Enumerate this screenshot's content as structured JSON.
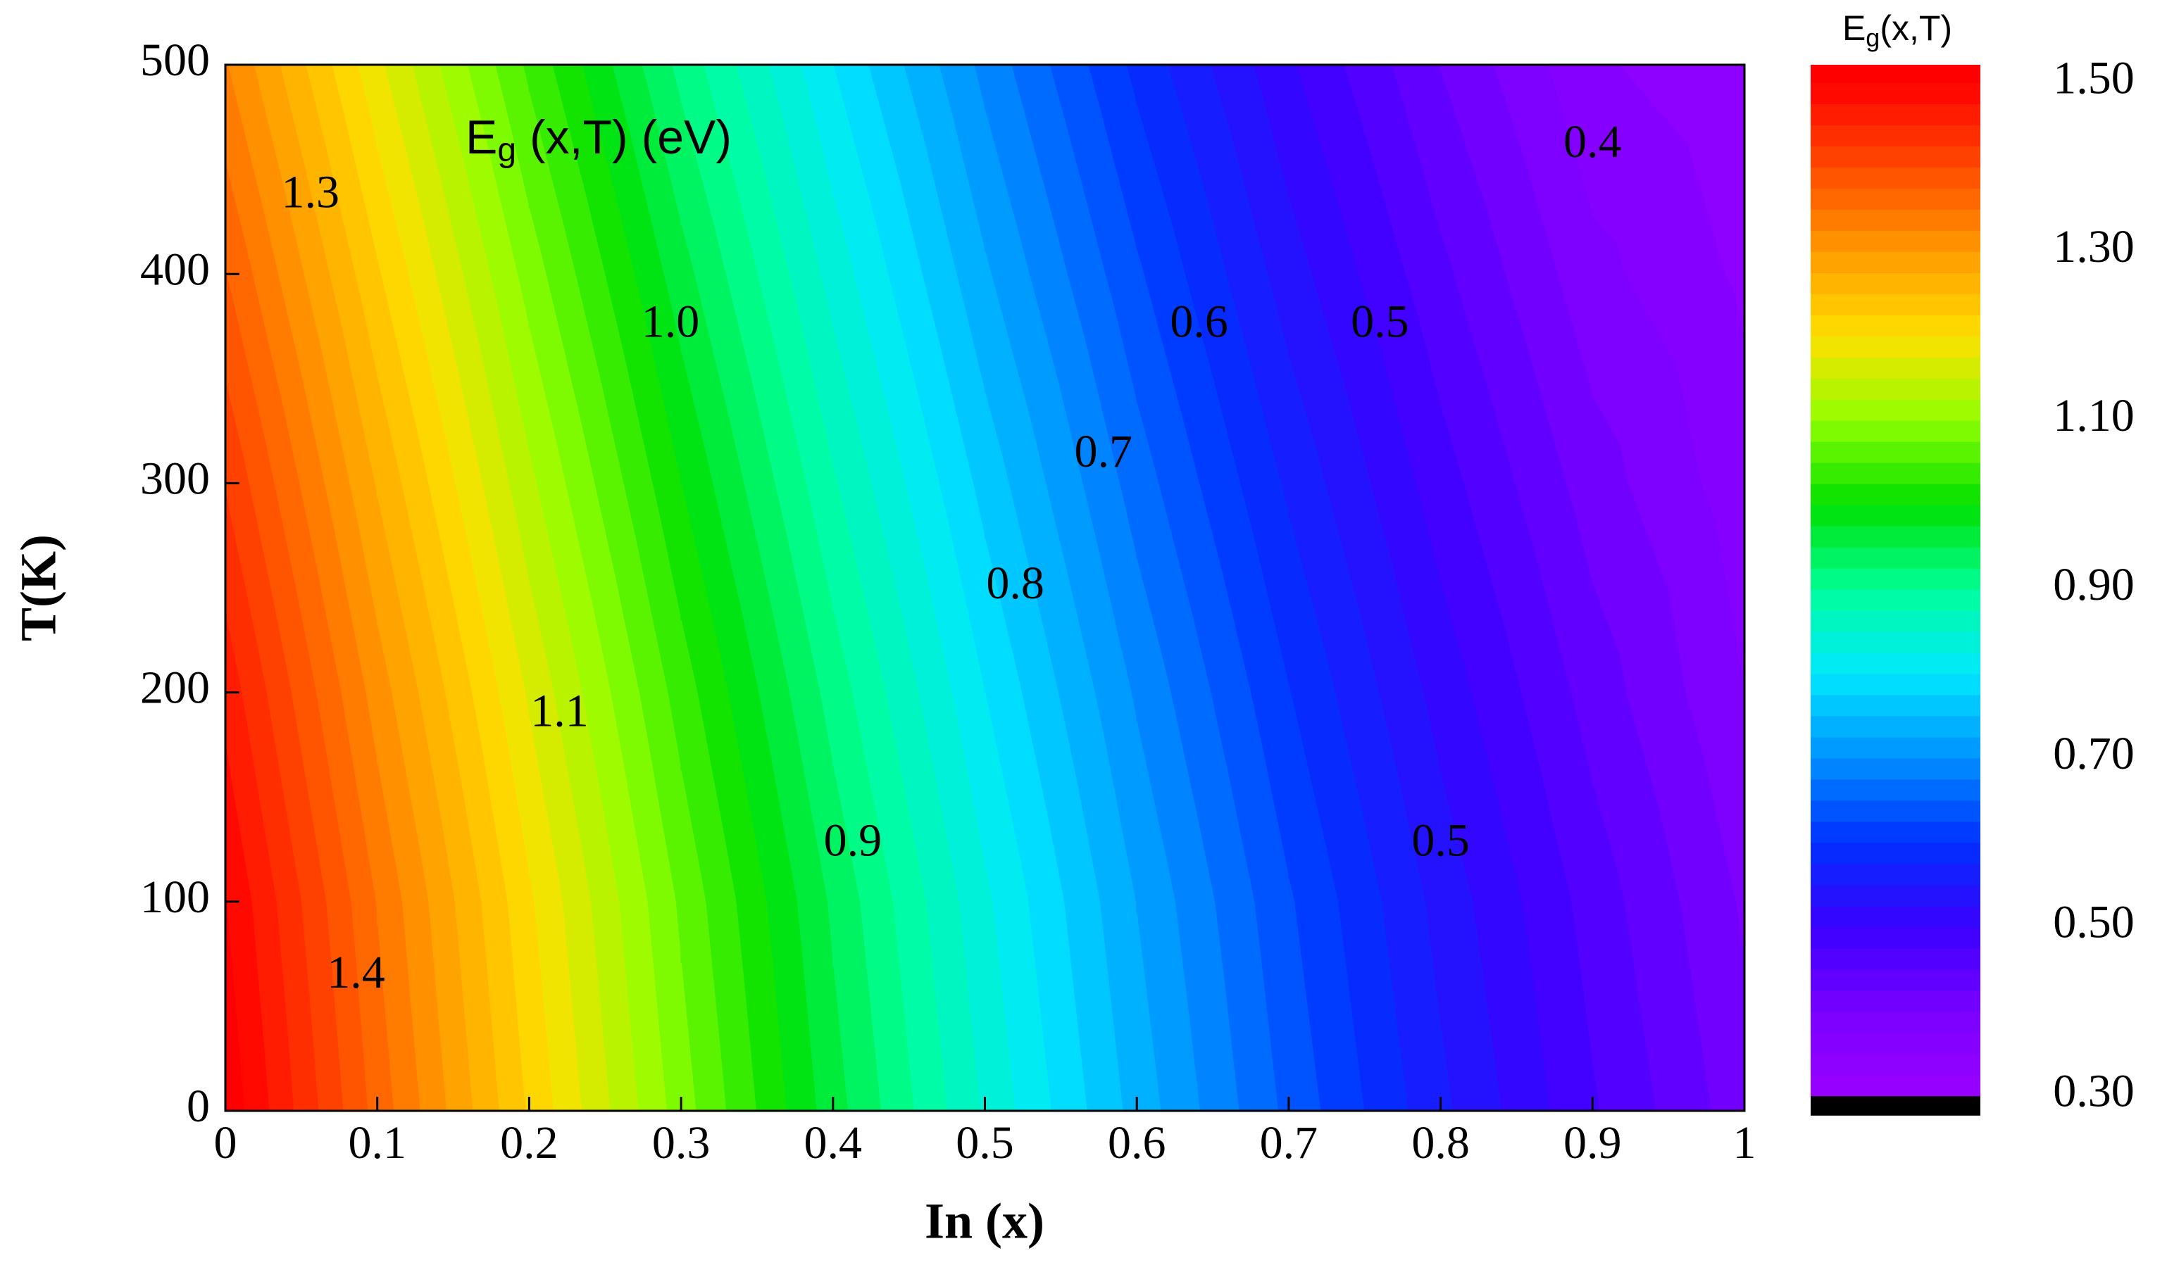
{
  "chart_data": {
    "type": "contour",
    "title": [
      "E",
      "g",
      " (x,T) (eV)"
    ],
    "xlabel": "In (x)",
    "ylabel": "T(K)",
    "colorbar_title": [
      "E",
      "g",
      "(x,T)"
    ],
    "x": [
      0,
      0.1,
      0.2,
      0.3,
      0.4,
      0.5,
      0.6,
      0.7,
      0.8,
      0.9,
      1
    ],
    "y": [
      0,
      100,
      200,
      300,
      400,
      500
    ],
    "z": [
      [
        1.519,
        1.365,
        1.221,
        1.087,
        0.961,
        0.846,
        0.74,
        0.643,
        0.556,
        0.478,
        0.41
      ],
      [
        1.501,
        1.348,
        1.204,
        1.07,
        0.945,
        0.83,
        0.724,
        0.628,
        0.541,
        0.464,
        0.396
      ],
      [
        1.466,
        1.313,
        1.171,
        1.038,
        0.914,
        0.8,
        0.696,
        0.601,
        0.515,
        0.439,
        0.375
      ],
      [
        1.423,
        1.272,
        1.131,
        1.0,
        0.878,
        0.766,
        0.663,
        0.57,
        0.486,
        0.412,
        0.36
      ],
      [
        1.376,
        1.228,
        1.089,
        0.96,
        0.84,
        0.729,
        0.629,
        0.537,
        0.456,
        0.383,
        0.345
      ],
      [
        1.327,
        1.181,
        1.044,
        0.917,
        0.8,
        0.692,
        0.593,
        0.504,
        0.424,
        0.354,
        0.33
      ]
    ],
    "xlim": [
      0,
      1
    ],
    "ylim": [
      0,
      500
    ],
    "xticks": [
      0,
      0.1,
      0.2,
      0.3,
      0.4,
      0.5,
      0.6,
      0.7,
      0.8,
      0.9,
      1
    ],
    "yticks": [
      0,
      100,
      200,
      300,
      400,
      500
    ],
    "clim": [
      0.277,
      1.521
    ],
    "zticks": [
      {
        "value": 0.3,
        "label": "0.30"
      },
      {
        "value": 0.5,
        "label": "0.50"
      },
      {
        "value": 0.7,
        "label": "0.70"
      },
      {
        "value": 0.9,
        "label": "0.90"
      },
      {
        "value": 1.1,
        "label": "1.10"
      },
      {
        "value": 1.3,
        "label": "1.30"
      },
      {
        "value": 1.5,
        "label": "1.50"
      }
    ],
    "band_step": 0.025,
    "under_color": "#000000",
    "colors": [
      "#9a00ff",
      "#7a00ff",
      "#3a00ff",
      "#0030ff",
      "#0090ff",
      "#00e8ff",
      "#00ff9a",
      "#00e000",
      "#90ff00",
      "#ffe000",
      "#ff9a00",
      "#ff4a00",
      "#ff0000"
    ],
    "contour_labels": [
      {
        "label": "1.3",
        "x": 0.056,
        "y": 437
      },
      {
        "label": "1.4",
        "x": 0.086,
        "y": 64
      },
      {
        "label": "1.0",
        "x": 0.293,
        "y": 375
      },
      {
        "label": "1.1",
        "x": 0.22,
        "y": 189
      },
      {
        "label": "0.9",
        "x": 0.413,
        "y": 127
      },
      {
        "label": "0.8",
        "x": 0.52,
        "y": 250
      },
      {
        "label": "0.7",
        "x": 0.578,
        "y": 313
      },
      {
        "label": "0.6",
        "x": 0.641,
        "y": 375
      },
      {
        "label": "0.5",
        "x": 0.76,
        "y": 375
      },
      {
        "label": "0.5",
        "x": 0.8,
        "y": 127
      },
      {
        "label": "0.4",
        "x": 0.9,
        "y": 461
      }
    ]
  }
}
